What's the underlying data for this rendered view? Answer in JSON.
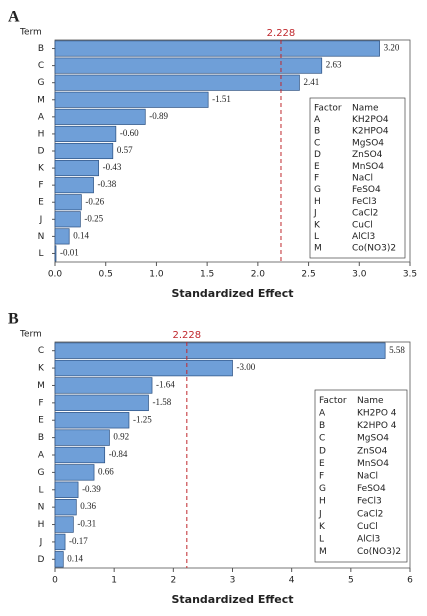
{
  "chart_data": [
    {
      "type": "pareto",
      "panel_label": "A",
      "ylabel": "Term",
      "xlabel": "Standardized Effect",
      "categories": [
        "B",
        "C",
        "G",
        "M",
        "A",
        "H",
        "D",
        "K",
        "F",
        "E",
        "J",
        "N",
        "L"
      ],
      "values": [
        3.2,
        2.63,
        2.41,
        -1.51,
        -0.89,
        -0.6,
        0.57,
        -0.43,
        -0.38,
        -0.26,
        -0.25,
        0.14,
        -0.01
      ],
      "value_labels": [
        "3.20",
        "2.63",
        "2.41",
        "-1.51",
        "-0.89",
        "-0.60",
        "0.57",
        "-0.43",
        "-0.38",
        "-0.26",
        "-0.25",
        "0.14",
        "-0.01"
      ],
      "color": "#6f9fd8",
      "ref_line": 2.228,
      "ref_color": "#c0282d",
      "xlim": [
        0,
        3.5
      ],
      "xticks": [
        {
          "value": 0,
          "label": "0.0"
        },
        0.5,
        {
          "value": 1,
          "label": "1.0"
        },
        1.5,
        {
          "value": 2,
          "label": "2.0"
        },
        2.5,
        {
          "value": 3,
          "label": "3.0"
        },
        3.5
      ],
      "legend_table": {
        "headers": [
          "Factor",
          "Name"
        ],
        "rows": [
          [
            "A",
            "KH2PO4"
          ],
          [
            "B",
            "K2HPO4"
          ],
          [
            "C",
            "MgSO4"
          ],
          [
            "D",
            "ZnSO4"
          ],
          [
            "E",
            "MnSO4"
          ],
          [
            "F",
            "NaCl"
          ],
          [
            "G",
            "FeSO4"
          ],
          [
            "H",
            "FeCl3"
          ],
          [
            "J",
            "CaCl2"
          ],
          [
            "K",
            "CuCl"
          ],
          [
            "L",
            "AlCl3"
          ],
          [
            "M",
            "Co(NO3)2"
          ]
        ]
      }
    },
    {
      "type": "pareto",
      "panel_label": "B",
      "ylabel": "Term",
      "xlabel": "Standardized Effect",
      "categories": [
        "C",
        "K",
        "M",
        "F",
        "E",
        "B",
        "A",
        "G",
        "L",
        "N",
        "H",
        "J",
        "D"
      ],
      "values": [
        5.58,
        -3.0,
        -1.64,
        -1.58,
        -1.25,
        0.92,
        -0.84,
        0.66,
        -0.39,
        0.36,
        -0.31,
        -0.17,
        0.14
      ],
      "value_labels": [
        "5.58",
        "-3.00",
        "-1.64",
        "-1.58",
        "-1.25",
        "0.92",
        "-0.84",
        "0.66",
        "-0.39",
        "0.36",
        "-0.31",
        "-0.17",
        "0.14"
      ],
      "color": "#6f9fd8",
      "ref_line": 2.228,
      "ref_color": "#c0282d",
      "xlim": [
        0,
        6
      ],
      "xticks": [
        0,
        1,
        2,
        3,
        4,
        5,
        6
      ],
      "legend_table": {
        "headers": [
          "Factor",
          "Name"
        ],
        "rows": [
          [
            "A",
            "KH2PO 4"
          ],
          [
            "B",
            "K2HPO 4"
          ],
          [
            "C",
            "MgSO4"
          ],
          [
            "D",
            "ZnSO4"
          ],
          [
            "E",
            "MnSO4"
          ],
          [
            "F",
            "NaCl"
          ],
          [
            "G",
            "FeSO4"
          ],
          [
            "H",
            "FeCl3"
          ],
          [
            "J",
            "CaCl2"
          ],
          [
            "K",
            "CuCl"
          ],
          [
            "L",
            "AlCl3"
          ],
          [
            "M",
            "Co(NO3)2"
          ]
        ]
      }
    }
  ]
}
